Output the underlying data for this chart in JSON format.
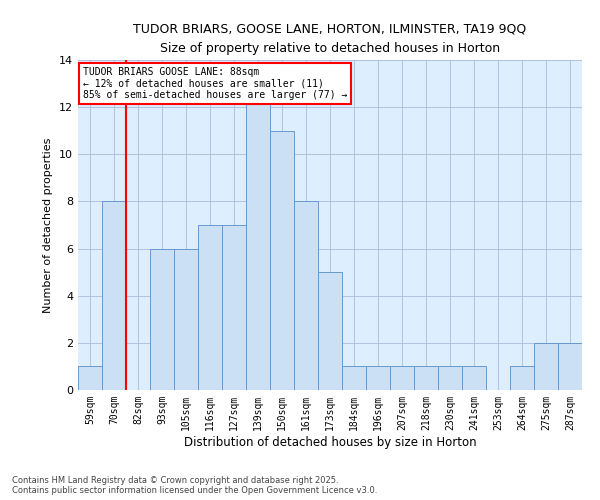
{
  "title_line1": "TUDOR BRIARS, GOOSE LANE, HORTON, ILMINSTER, TA19 9QQ",
  "title_line2": "Size of property relative to detached houses in Horton",
  "xlabel": "Distribution of detached houses by size in Horton",
  "ylabel": "Number of detached properties",
  "bins": [
    "59sqm",
    "70sqm",
    "82sqm",
    "93sqm",
    "105sqm",
    "116sqm",
    "127sqm",
    "139sqm",
    "150sqm",
    "161sqm",
    "173sqm",
    "184sqm",
    "196sqm",
    "207sqm",
    "218sqm",
    "230sqm",
    "241sqm",
    "253sqm",
    "264sqm",
    "275sqm",
    "287sqm"
  ],
  "values": [
    1,
    8,
    0,
    6,
    6,
    7,
    7,
    13,
    11,
    8,
    5,
    1,
    1,
    1,
    1,
    1,
    1,
    0,
    1,
    2,
    2
  ],
  "bar_color": "#cce0f5",
  "bar_edge_color": "#6699cc",
  "red_line_x": 1.5,
  "annotation_text": "TUDOR BRIARS GOOSE LANE: 88sqm\n← 12% of detached houses are smaller (11)\n85% of semi-detached houses are larger (77) →",
  "annotation_box_color": "white",
  "annotation_box_edge": "red",
  "footer_text": "Contains HM Land Registry data © Crown copyright and database right 2025.\nContains public sector information licensed under the Open Government Licence v3.0.",
  "ylim": [
    0,
    14
  ],
  "yticks": [
    0,
    2,
    4,
    6,
    8,
    10,
    12,
    14
  ],
  "background_color": "#ddeeff"
}
